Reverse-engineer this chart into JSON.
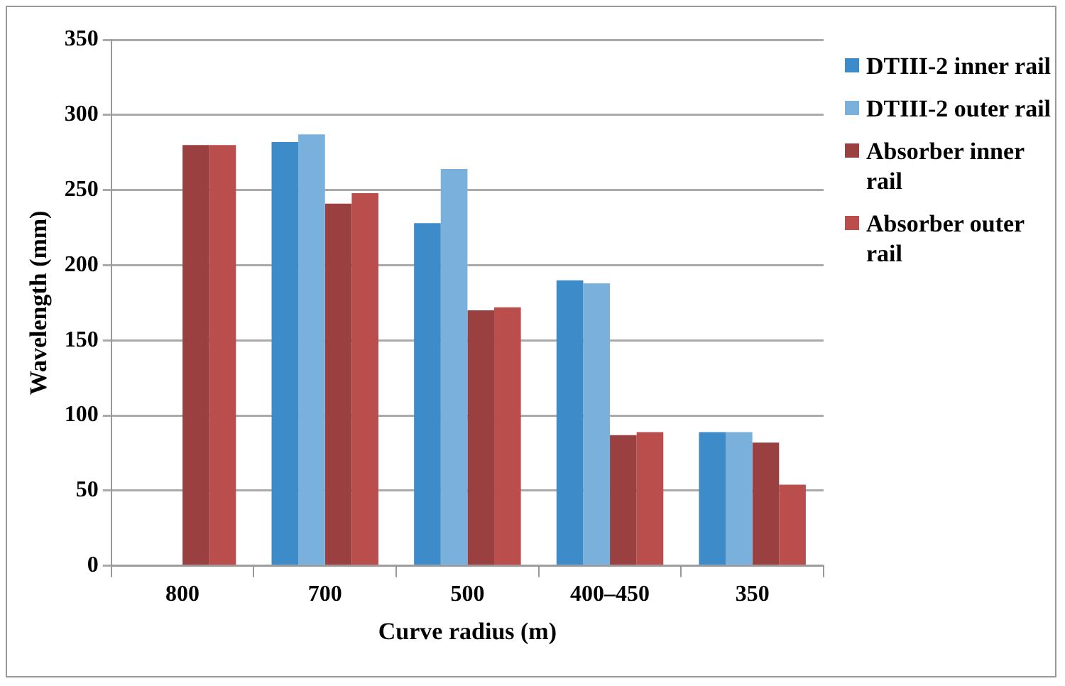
{
  "chart_data": {
    "type": "bar",
    "xlabel": "Curve radius (m)",
    "ylabel": "Wavelength (mm)",
    "categories": [
      "800",
      "700",
      "500",
      "400–450",
      "350"
    ],
    "series": [
      {
        "name": "DTIII-2 inner rail",
        "color": "#3d8bc9",
        "values": [
          null,
          282,
          228,
          190,
          89
        ]
      },
      {
        "name": "DTIII-2 outer rail",
        "color": "#7ab0dc",
        "values": [
          null,
          287,
          264,
          188,
          89
        ]
      },
      {
        "name": "Absorber inner rail",
        "color": "#9a4040",
        "values": [
          280,
          241,
          170,
          87,
          82
        ]
      },
      {
        "name": "Absorber outer rail",
        "color": "#b94e4c",
        "values": [
          280,
          248,
          172,
          89,
          54
        ]
      }
    ],
    "ylim": [
      0,
      350
    ],
    "yticks": [
      0,
      50,
      100,
      150,
      200,
      250,
      300,
      350
    ],
    "grid": "y",
    "legend": "right"
  }
}
